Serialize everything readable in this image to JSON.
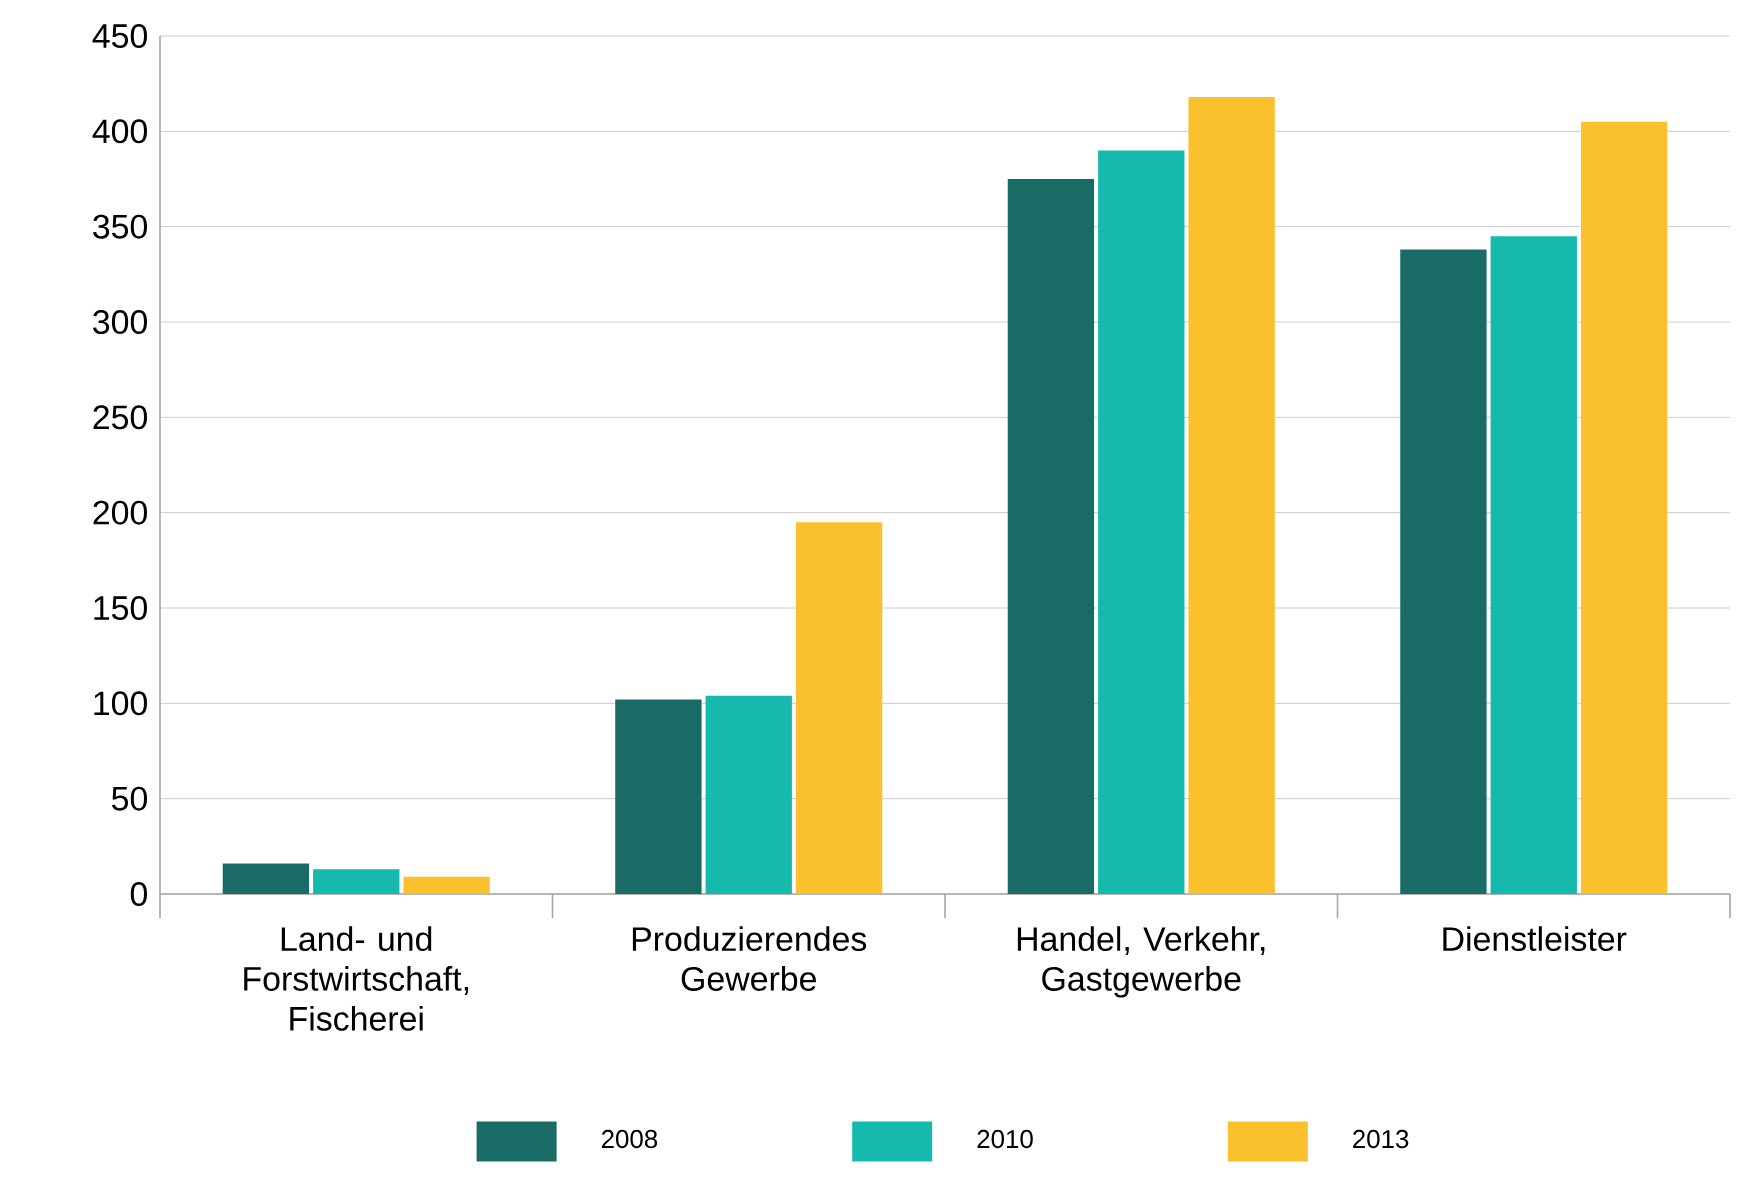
{
  "chart_data": {
    "type": "bar",
    "categories": [
      "Land- und Forstwirtschaft, Fischerei",
      "Produzierendes Gewerbe",
      "Handel, Verkehr, Gastgewerbe",
      "Dienstleister"
    ],
    "series": [
      {
        "name": "2008",
        "color": "#1a6b66",
        "values": [
          16,
          102,
          375,
          338
        ]
      },
      {
        "name": "2010",
        "color": "#16b9ad",
        "values": [
          13,
          104,
          390,
          345
        ]
      },
      {
        "name": "2013",
        "color": "#fbc02d",
        "values": [
          9,
          195,
          418,
          405
        ]
      }
    ],
    "ylim": [
      0,
      450
    ],
    "yticks": [
      0,
      50,
      100,
      150,
      200,
      250,
      300,
      350,
      400,
      450
    ],
    "grid": "y",
    "legend": "bottom"
  }
}
